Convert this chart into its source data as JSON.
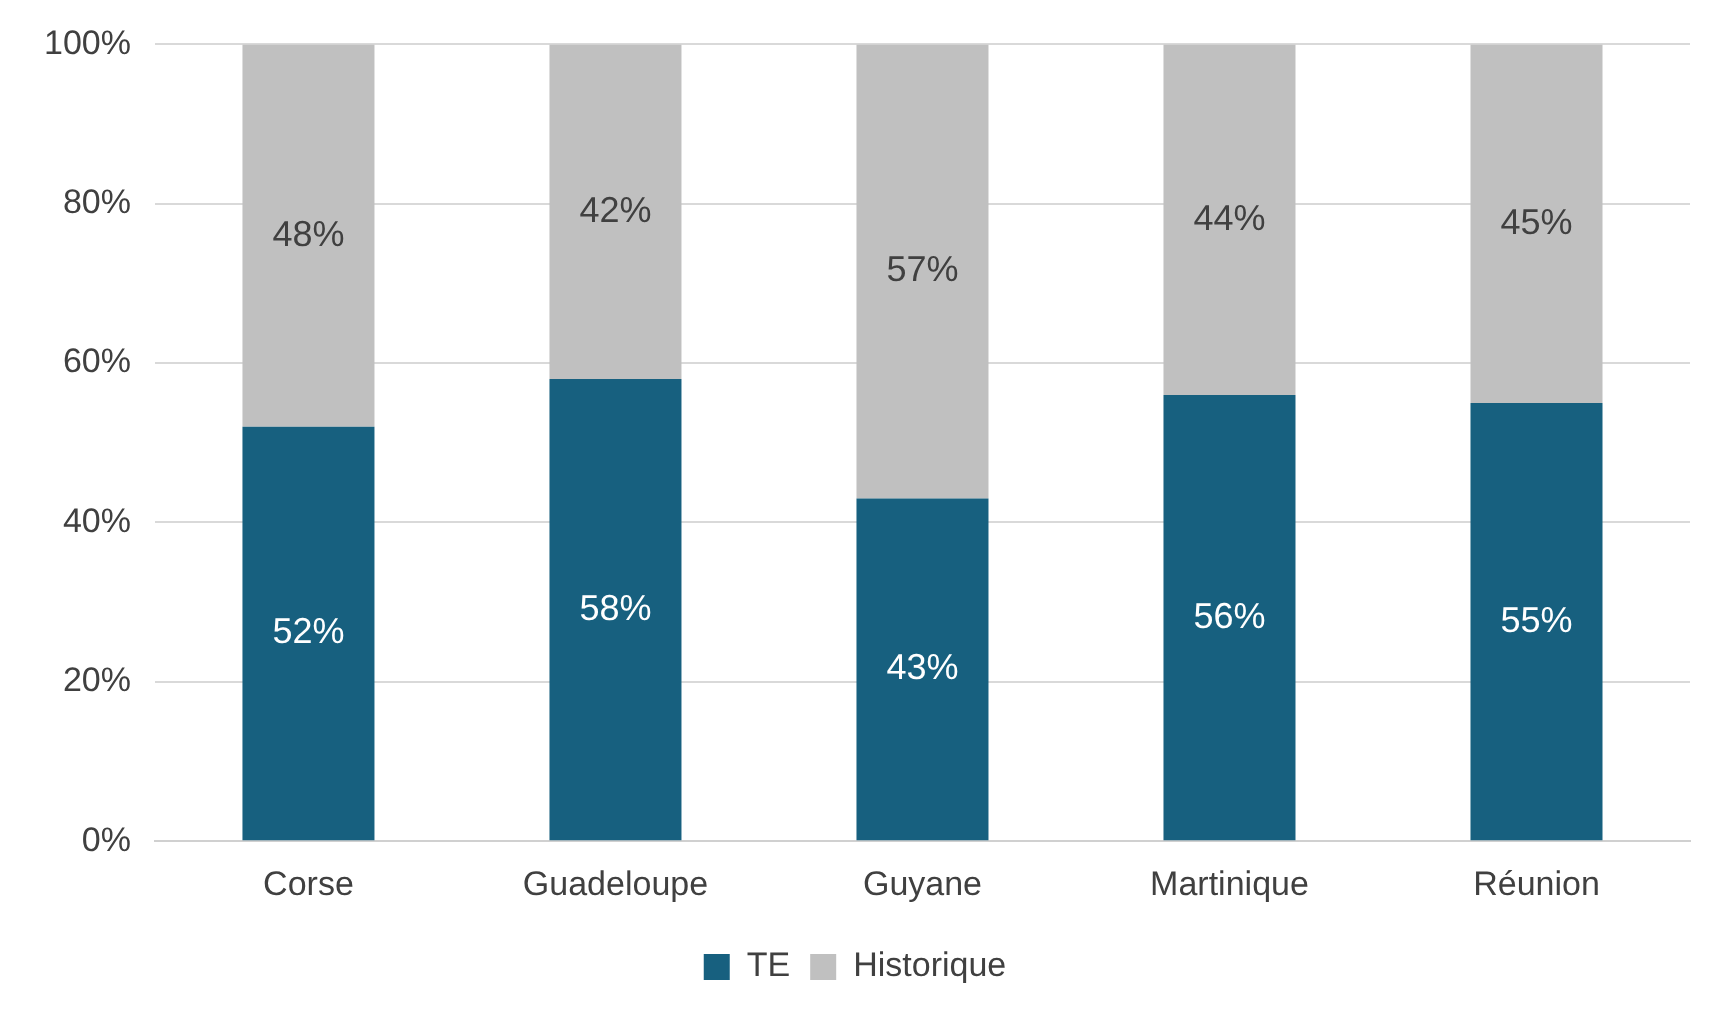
{
  "chart_data": {
    "type": "bar",
    "stacked": true,
    "categories": [
      "Corse",
      "Guadeloupe",
      "Guyane",
      "Martinique",
      "Réunion"
    ],
    "series": [
      {
        "name": "TE",
        "color": "#17607f",
        "values": [
          52,
          58,
          43,
          56,
          55
        ],
        "value_labels": [
          "52%",
          "58%",
          "43%",
          "56%",
          "55%"
        ]
      },
      {
        "name": "Historique",
        "color": "#c0c0c0",
        "values": [
          48,
          42,
          57,
          44,
          45
        ],
        "value_labels": [
          "48%",
          "42%",
          "57%",
          "44%",
          "45%"
        ]
      }
    ],
    "ylim": [
      0,
      100
    ],
    "yticks": [
      {
        "value": 0,
        "label": "0%"
      },
      {
        "value": 20,
        "label": "20%"
      },
      {
        "value": 40,
        "label": "40%"
      },
      {
        "value": 60,
        "label": "60%"
      },
      {
        "value": 80,
        "label": "80%"
      },
      {
        "value": 100,
        "label": "100%"
      }
    ],
    "grid": "y",
    "legend": "bottom"
  }
}
